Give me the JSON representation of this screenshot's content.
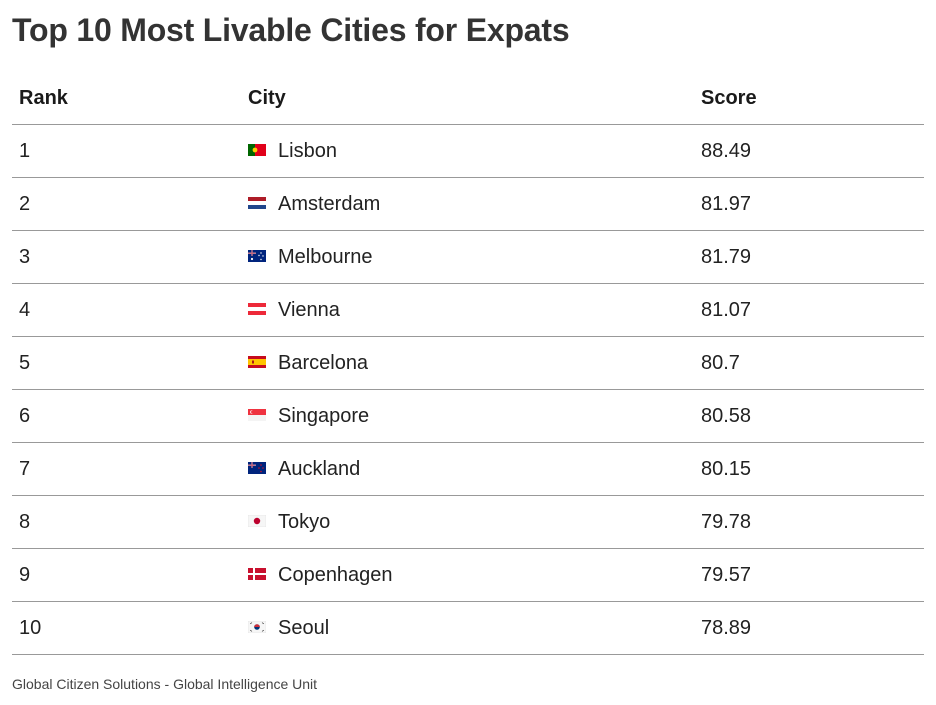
{
  "title": "Top 10 Most Livable Cities for Expats",
  "source": "Global Citizen Solutions - Global Intelligence Unit",
  "chart_data": {
    "type": "table",
    "title": "Top 10 Most Livable Cities for Expats",
    "columns": [
      "Rank",
      "City",
      "Score"
    ],
    "rows": [
      {
        "rank": "1",
        "city": "Lisbon",
        "flag": "portugal-flag-icon",
        "score": "88.49"
      },
      {
        "rank": "2",
        "city": "Amsterdam",
        "flag": "netherlands-flag-icon",
        "score": "81.97"
      },
      {
        "rank": "3",
        "city": "Melbourne",
        "flag": "australia-flag-icon",
        "score": "81.79"
      },
      {
        "rank": "4",
        "city": "Vienna",
        "flag": "austria-flag-icon",
        "score": "81.07"
      },
      {
        "rank": "5",
        "city": "Barcelona",
        "flag": "spain-flag-icon",
        "score": "80.7"
      },
      {
        "rank": "6",
        "city": "Singapore",
        "flag": "singapore-flag-icon",
        "score": "80.58"
      },
      {
        "rank": "7",
        "city": "Auckland",
        "flag": "new-zealand-flag-icon",
        "score": "80.15"
      },
      {
        "rank": "8",
        "city": "Tokyo",
        "flag": "japan-flag-icon",
        "score": "79.78"
      },
      {
        "rank": "9",
        "city": "Copenhagen",
        "flag": "denmark-flag-icon",
        "score": "79.57"
      },
      {
        "rank": "10",
        "city": "Seoul",
        "flag": "south-korea-flag-icon",
        "score": "78.89"
      }
    ]
  }
}
